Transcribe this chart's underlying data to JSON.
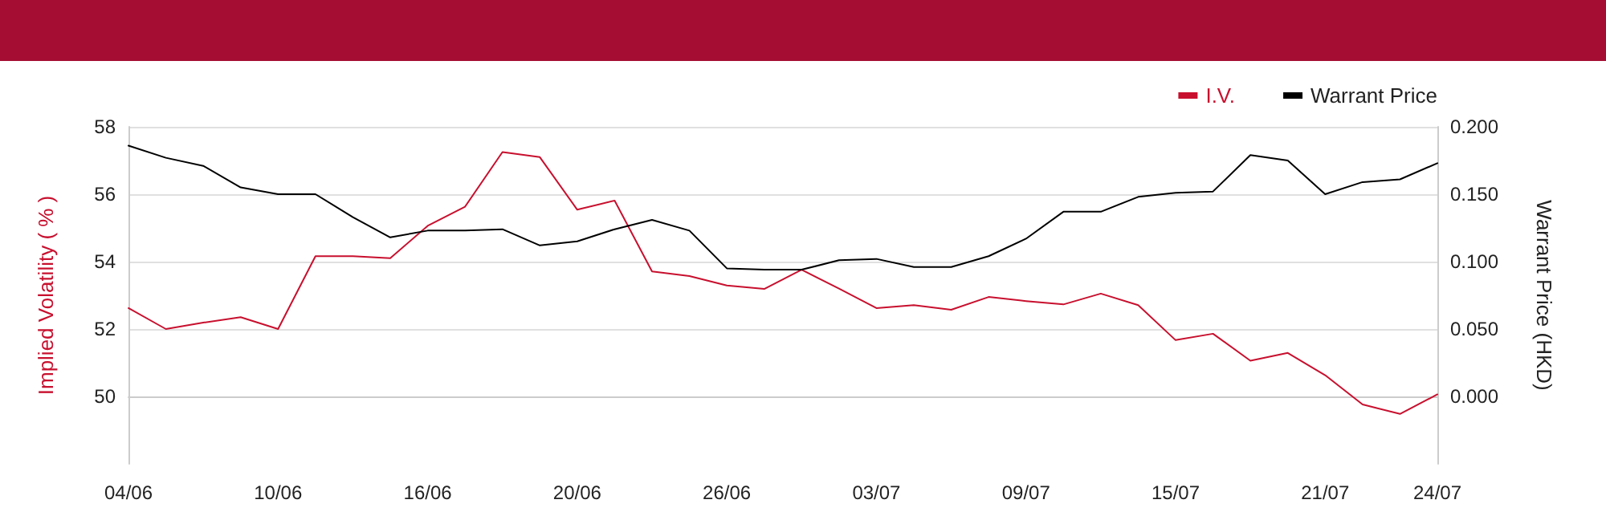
{
  "chart_data": {
    "type": "line",
    "ylabel": "Implied Volatility ( % )",
    "y2label": "Warrant Price (HKD)",
    "categories": [
      "04/06",
      null,
      null,
      null,
      "10/06",
      null,
      null,
      null,
      "16/06",
      null,
      null,
      null,
      "20/06",
      null,
      null,
      null,
      "26/06",
      null,
      null,
      null,
      "03/07",
      null,
      null,
      null,
      "09/07",
      null,
      null,
      null,
      "15/07",
      null,
      null,
      null,
      "21/07",
      null,
      null,
      "24/07"
    ],
    "series": [
      {
        "name": "I.V.",
        "color": "#c8102e",
        "values": [
          52.62,
          52.0,
          52.19,
          52.35,
          52.0,
          54.16,
          54.16,
          54.1,
          55.06,
          55.63,
          57.25,
          57.1,
          55.54,
          55.81,
          53.71,
          53.57,
          53.29,
          53.19,
          53.76,
          53.2,
          52.62,
          52.71,
          52.57,
          52.95,
          52.83,
          52.73,
          53.05,
          52.71,
          51.67,
          51.86,
          51.06,
          51.29,
          50.63,
          49.76,
          49.48,
          50.06
        ]
      },
      {
        "name": "Warrant Price",
        "color": "#000000",
        "axis": "y2",
        "values": [
          0.186,
          0.177,
          0.171,
          0.155,
          0.15,
          0.15,
          0.133,
          0.118,
          0.123,
          0.123,
          0.124,
          0.112,
          0.115,
          0.124,
          0.131,
          0.123,
          0.095,
          0.094,
          0.094,
          0.101,
          0.102,
          0.096,
          0.096,
          0.104,
          0.117,
          0.137,
          0.137,
          0.148,
          0.151,
          0.152,
          0.179,
          0.175,
          0.15,
          0.159,
          0.161,
          0.173
        ]
      }
    ],
    "ylim": [
      48,
      58
    ],
    "yticks": [
      50,
      52,
      54,
      56,
      58
    ],
    "y2lim": [
      -0.05,
      0.2
    ],
    "y2ticks": [
      {
        "value": 0,
        "label": "0.000"
      },
      {
        "value": 0.05,
        "label": "0.050"
      },
      {
        "value": 0.1,
        "label": "0.100"
      },
      {
        "value": 0.15,
        "label": "0.150"
      },
      {
        "value": 0.2,
        "label": "0.200"
      }
    ],
    "grid": "y",
    "legend": "top right",
    "marker": "none",
    "line_style": "solid"
  }
}
